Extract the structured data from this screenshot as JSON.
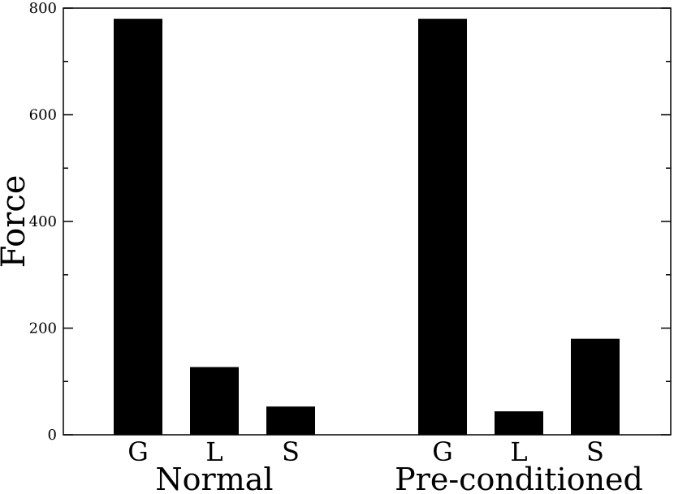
{
  "chart_data": {
    "type": "bar",
    "title": "",
    "xlabel": "",
    "ylabel": "Force",
    "ylim": [
      0,
      800
    ],
    "yticks": [
      0,
      200,
      400,
      600,
      800
    ],
    "grid": false,
    "legend": "none",
    "bar_color": "#000000",
    "groups": [
      {
        "name": "Normal",
        "categories": [
          "G",
          "L",
          "S"
        ],
        "values": [
          780,
          127,
          53
        ]
      },
      {
        "name": "Pre-conditioned",
        "categories": [
          "G",
          "L",
          "S"
        ],
        "values": [
          780,
          44,
          180
        ]
      }
    ]
  }
}
